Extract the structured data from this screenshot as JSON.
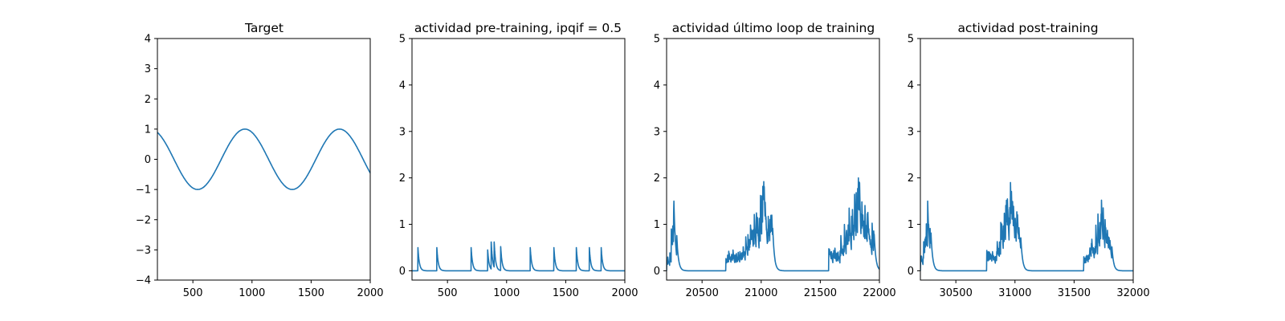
{
  "chart_data": [
    {
      "type": "line",
      "title": "Target",
      "xlim": [
        200,
        2000
      ],
      "ylim": [
        -4,
        4
      ],
      "xticks": [
        500,
        1000,
        1500,
        2000
      ],
      "yticks": [
        -4,
        -3,
        -2,
        -1,
        0,
        1,
        2,
        3,
        4
      ],
      "color": "#1f77b4",
      "series": [
        {
          "generator": "sine",
          "amplitude": 1,
          "period": 800,
          "peak_x": 940,
          "x_start": 200,
          "x_end": 2000
        }
      ]
    },
    {
      "type": "line",
      "title": "actividad pre-training, ipqif = 0.5",
      "xlim": [
        200,
        2000
      ],
      "ylim": [
        -0.2,
        5
      ],
      "xticks": [
        500,
        1000,
        1500,
        2000
      ],
      "yticks": [
        0,
        1,
        2,
        3,
        4,
        5
      ],
      "color": "#1f77b4",
      "series": [
        {
          "generator": "spikes",
          "x_start": 200,
          "x_end": 2000,
          "decay": 12,
          "spikes": [
            [
              250,
              0.5
            ],
            [
              410,
              0.5
            ],
            [
              700,
              0.5
            ],
            [
              840,
              0.45
            ],
            [
              870,
              0.62
            ],
            [
              895,
              0.62
            ],
            [
              950,
              0.52
            ],
            [
              1200,
              0.5
            ],
            [
              1400,
              0.5
            ],
            [
              1590,
              0.5
            ],
            [
              1700,
              0.5
            ],
            [
              1800,
              0.5
            ]
          ]
        }
      ]
    },
    {
      "type": "line",
      "title": "actividad último loop de training",
      "xlim": [
        20200,
        22000
      ],
      "ylim": [
        -0.2,
        5
      ],
      "xticks": [
        20500,
        21000,
        21500,
        22000
      ],
      "yticks": [
        0,
        1,
        2,
        3,
        4,
        5
      ],
      "color": "#1f77b4",
      "series": [
        {
          "generator": "bursts",
          "x_start": 20200,
          "x_end": 22000,
          "decay": 14,
          "seed": 7,
          "bursts": [
            {
              "x0": 20200,
              "x1": 20290,
              "peak": 1.5,
              "peak_x": 20260
            },
            {
              "x0": 20700,
              "x1": 21100,
              "peak": 1.92,
              "peak_x": 21020
            },
            {
              "x0": 21570,
              "x1": 21960,
              "peak": 2.0,
              "peak_x": 21820
            }
          ]
        }
      ]
    },
    {
      "type": "line",
      "title": "actividad post-training",
      "xlim": [
        30200,
        32000
      ],
      "ylim": [
        -0.2,
        5
      ],
      "xticks": [
        30500,
        31000,
        31500,
        32000
      ],
      "yticks": [
        0,
        1,
        2,
        3,
        4,
        5
      ],
      "color": "#1f77b4",
      "series": [
        {
          "generator": "bursts",
          "x_start": 30200,
          "x_end": 32000,
          "decay": 14,
          "seed": 11,
          "bursts": [
            {
              "x0": 30200,
              "x1": 30300,
              "peak": 1.5,
              "peak_x": 30260
            },
            {
              "x0": 30760,
              "x1": 31050,
              "peak": 1.9,
              "peak_x": 30960
            },
            {
              "x0": 31580,
              "x1": 31820,
              "peak": 1.52,
              "peak_x": 31730
            }
          ]
        }
      ]
    }
  ]
}
